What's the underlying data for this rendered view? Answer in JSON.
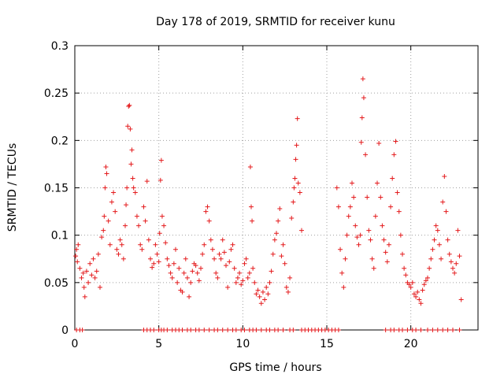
{
  "chart_data": {
    "type": "scatter",
    "title": "Day 178 of 2019, SRMTID for receiver kunu",
    "xlabel": "GPS time / hours",
    "ylabel": "SRMTID / TECUs",
    "xlim": [
      0,
      24
    ],
    "ylim": [
      0,
      0.3
    ],
    "x_ticks": [
      0,
      5,
      10,
      15,
      20
    ],
    "x_tick_labels": [
      "0",
      "5",
      "10",
      "15",
      "20"
    ],
    "y_ticks": [
      0,
      0.05,
      0.1,
      0.15,
      0.2,
      0.25,
      0.3
    ],
    "y_tick_labels": [
      "0",
      "0.05",
      "0.1",
      "0.15",
      "0.2",
      "0.25",
      "0.3"
    ],
    "grid": true,
    "marker": "+",
    "series": [
      {
        "name": "SRMTID",
        "color": "#e41a1c",
        "points": [
          [
            0.05,
            0.078
          ],
          [
            0.1,
            0.085
          ],
          [
            0.15,
            0.072
          ],
          [
            0.2,
            0.09
          ],
          [
            0.3,
            0.065
          ],
          [
            0.4,
            0.055
          ],
          [
            0.5,
            0.06
          ],
          [
            0.55,
            0.045
          ],
          [
            0.6,
            0.035
          ],
          [
            0.7,
            0.062
          ],
          [
            0.8,
            0.05
          ],
          [
            0.9,
            0.07
          ],
          [
            1.0,
            0.058
          ],
          [
            1.1,
            0.075
          ],
          [
            1.2,
            0.055
          ],
          [
            1.3,
            0.062
          ],
          [
            1.4,
            0.08
          ],
          [
            1.5,
            0.045
          ],
          [
            1.6,
            0.098
          ],
          [
            1.7,
            0.105
          ],
          [
            1.75,
            0.12
          ],
          [
            1.8,
            0.15
          ],
          [
            1.85,
            0.172
          ],
          [
            1.9,
            0.165
          ],
          [
            2.0,
            0.115
          ],
          [
            2.1,
            0.09
          ],
          [
            2.2,
            0.135
          ],
          [
            2.3,
            0.145
          ],
          [
            2.4,
            0.125
          ],
          [
            2.5,
            0.085
          ],
          [
            2.6,
            0.08
          ],
          [
            2.7,
            0.095
          ],
          [
            2.8,
            0.09
          ],
          [
            2.9,
            0.075
          ],
          [
            3.0,
            0.11
          ],
          [
            3.05,
            0.132
          ],
          [
            3.1,
            0.15
          ],
          [
            3.15,
            0.215
          ],
          [
            3.2,
            0.236
          ],
          [
            3.25,
            0.237
          ],
          [
            3.3,
            0.212
          ],
          [
            3.35,
            0.175
          ],
          [
            3.4,
            0.19
          ],
          [
            3.45,
            0.16
          ],
          [
            3.5,
            0.15
          ],
          [
            3.6,
            0.145
          ],
          [
            3.7,
            0.12
          ],
          [
            3.8,
            0.11
          ],
          [
            3.9,
            0.09
          ],
          [
            4.0,
            0.085
          ],
          [
            4.1,
            0.13
          ],
          [
            4.2,
            0.115
          ],
          [
            4.3,
            0.157
          ],
          [
            4.4,
            0.095
          ],
          [
            4.5,
            0.075
          ],
          [
            4.6,
            0.066
          ],
          [
            4.7,
            0.07
          ],
          [
            4.8,
            0.09
          ],
          [
            4.9,
            0.08
          ],
          [
            5.0,
            0.072
          ],
          [
            5.05,
            0.102
          ],
          [
            5.1,
            0.158
          ],
          [
            5.15,
            0.179
          ],
          [
            5.2,
            0.12
          ],
          [
            5.3,
            0.11
          ],
          [
            5.4,
            0.092
          ],
          [
            5.5,
            0.075
          ],
          [
            5.6,
            0.068
          ],
          [
            5.7,
            0.06
          ],
          [
            5.8,
            0.055
          ],
          [
            5.9,
            0.07
          ],
          [
            6.0,
            0.085
          ],
          [
            6.1,
            0.05
          ],
          [
            6.2,
            0.065
          ],
          [
            6.3,
            0.042
          ],
          [
            6.4,
            0.04
          ],
          [
            6.5,
            0.06
          ],
          [
            6.6,
            0.075
          ],
          [
            6.7,
            0.055
          ],
          [
            6.8,
            0.035
          ],
          [
            6.9,
            0.05
          ],
          [
            7.0,
            0.062
          ],
          [
            7.1,
            0.07
          ],
          [
            7.2,
            0.068
          ],
          [
            7.3,
            0.06
          ],
          [
            7.4,
            0.052
          ],
          [
            7.5,
            0.065
          ],
          [
            7.6,
            0.08
          ],
          [
            7.7,
            0.09
          ],
          [
            7.8,
            0.125
          ],
          [
            7.9,
            0.13
          ],
          [
            8.0,
            0.115
          ],
          [
            8.1,
            0.095
          ],
          [
            8.2,
            0.085
          ],
          [
            8.3,
            0.075
          ],
          [
            8.4,
            0.06
          ],
          [
            8.5,
            0.055
          ],
          [
            8.6,
            0.08
          ],
          [
            8.7,
            0.075
          ],
          [
            8.8,
            0.095
          ],
          [
            8.9,
            0.082
          ],
          [
            9.0,
            0.068
          ],
          [
            9.1,
            0.045
          ],
          [
            9.2,
            0.072
          ],
          [
            9.3,
            0.085
          ],
          [
            9.4,
            0.09
          ],
          [
            9.5,
            0.065
          ],
          [
            9.6,
            0.05
          ],
          [
            9.7,
            0.055
          ],
          [
            9.8,
            0.06
          ],
          [
            9.9,
            0.048
          ],
          [
            10.0,
            0.052
          ],
          [
            10.1,
            0.07
          ],
          [
            10.2,
            0.075
          ],
          [
            10.3,
            0.055
          ],
          [
            10.4,
            0.06
          ],
          [
            10.45,
            0.172
          ],
          [
            10.5,
            0.13
          ],
          [
            10.55,
            0.115
          ],
          [
            10.6,
            0.065
          ],
          [
            10.7,
            0.05
          ],
          [
            10.8,
            0.038
          ],
          [
            10.9,
            0.042
          ],
          [
            11.0,
            0.035
          ],
          [
            11.1,
            0.028
          ],
          [
            11.2,
            0.04
          ],
          [
            11.3,
            0.032
          ],
          [
            11.4,
            0.045
          ],
          [
            11.5,
            0.038
          ],
          [
            11.6,
            0.05
          ],
          [
            11.7,
            0.062
          ],
          [
            11.8,
            0.08
          ],
          [
            11.9,
            0.095
          ],
          [
            12.0,
            0.102
          ],
          [
            12.1,
            0.115
          ],
          [
            12.2,
            0.128
          ],
          [
            12.3,
            0.078
          ],
          [
            12.4,
            0.09
          ],
          [
            12.5,
            0.07
          ],
          [
            12.6,
            0.045
          ],
          [
            12.7,
            0.04
          ],
          [
            12.8,
            0.055
          ],
          [
            12.9,
            0.118
          ],
          [
            13.0,
            0.135
          ],
          [
            13.05,
            0.15
          ],
          [
            13.1,
            0.16
          ],
          [
            13.15,
            0.18
          ],
          [
            13.2,
            0.195
          ],
          [
            13.25,
            0.223
          ],
          [
            13.3,
            0.155
          ],
          [
            13.4,
            0.145
          ],
          [
            13.5,
            0.105
          ],
          [
            15.6,
            0.15
          ],
          [
            15.7,
            0.13
          ],
          [
            15.8,
            0.085
          ],
          [
            15.9,
            0.06
          ],
          [
            16.0,
            0.045
          ],
          [
            16.1,
            0.075
          ],
          [
            16.2,
            0.1
          ],
          [
            16.3,
            0.12
          ],
          [
            16.4,
            0.13
          ],
          [
            16.5,
            0.155
          ],
          [
            16.6,
            0.14
          ],
          [
            16.7,
            0.11
          ],
          [
            16.8,
            0.098
          ],
          [
            16.9,
            0.09
          ],
          [
            17.0,
            0.1
          ],
          [
            17.05,
            0.198
          ],
          [
            17.1,
            0.224
          ],
          [
            17.15,
            0.265
          ],
          [
            17.2,
            0.245
          ],
          [
            17.3,
            0.185
          ],
          [
            17.4,
            0.14
          ],
          [
            17.5,
            0.105
          ],
          [
            17.6,
            0.095
          ],
          [
            17.7,
            0.075
          ],
          [
            17.8,
            0.065
          ],
          [
            17.9,
            0.12
          ],
          [
            18.0,
            0.155
          ],
          [
            18.1,
            0.197
          ],
          [
            18.2,
            0.14
          ],
          [
            18.3,
            0.11
          ],
          [
            18.4,
            0.095
          ],
          [
            18.5,
            0.082
          ],
          [
            18.6,
            0.072
          ],
          [
            18.7,
            0.09
          ],
          [
            18.8,
            0.13
          ],
          [
            18.9,
            0.16
          ],
          [
            19.0,
            0.185
          ],
          [
            19.1,
            0.199
          ],
          [
            19.2,
            0.145
          ],
          [
            19.3,
            0.125
          ],
          [
            19.4,
            0.1
          ],
          [
            19.5,
            0.08
          ],
          [
            19.6,
            0.065
          ],
          [
            19.7,
            0.058
          ],
          [
            19.8,
            0.05
          ],
          [
            19.9,
            0.048
          ],
          [
            20.0,
            0.045
          ],
          [
            20.1,
            0.05
          ],
          [
            20.2,
            0.038
          ],
          [
            20.3,
            0.035
          ],
          [
            20.4,
            0.04
          ],
          [
            20.5,
            0.032
          ],
          [
            20.6,
            0.028
          ],
          [
            20.7,
            0.042
          ],
          [
            20.8,
            0.048
          ],
          [
            20.9,
            0.052
          ],
          [
            21.0,
            0.055
          ],
          [
            21.1,
            0.065
          ],
          [
            21.2,
            0.075
          ],
          [
            21.3,
            0.085
          ],
          [
            21.4,
            0.095
          ],
          [
            21.5,
            0.11
          ],
          [
            21.6,
            0.105
          ],
          [
            21.7,
            0.09
          ],
          [
            21.8,
            0.075
          ],
          [
            21.9,
            0.135
          ],
          [
            22.0,
            0.162
          ],
          [
            22.1,
            0.125
          ],
          [
            22.2,
            0.095
          ],
          [
            22.3,
            0.08
          ],
          [
            22.4,
            0.072
          ],
          [
            22.5,
            0.065
          ],
          [
            22.6,
            0.06
          ],
          [
            22.7,
            0.07
          ],
          [
            22.8,
            0.105
          ],
          [
            22.9,
            0.078
          ],
          [
            23.0,
            0.032
          ]
        ],
        "zero_points_x": [
          0.1,
          0.3,
          0.45,
          4.1,
          4.3,
          4.5,
          4.7,
          5.0,
          5.15,
          5.3,
          5.5,
          5.8,
          6.0,
          6.2,
          6.4,
          6.7,
          6.9,
          7.2,
          7.4,
          7.7,
          8.0,
          8.3,
          8.5,
          8.8,
          9.1,
          9.4,
          9.6,
          9.9,
          10.1,
          10.4,
          10.6,
          10.8,
          11.1,
          11.4,
          11.6,
          11.9,
          12.1,
          12.4,
          12.8,
          13.0,
          13.5,
          13.7,
          13.9,
          14.1,
          14.3,
          14.5,
          14.7,
          14.9,
          15.1,
          15.3,
          15.5,
          15.7,
          18.5,
          18.8,
          19.0,
          19.3,
          19.5,
          19.8,
          20.1,
          20.3,
          20.6,
          21.0,
          21.3,
          21.6,
          21.9,
          22.2,
          22.5,
          22.9
        ]
      }
    ]
  }
}
